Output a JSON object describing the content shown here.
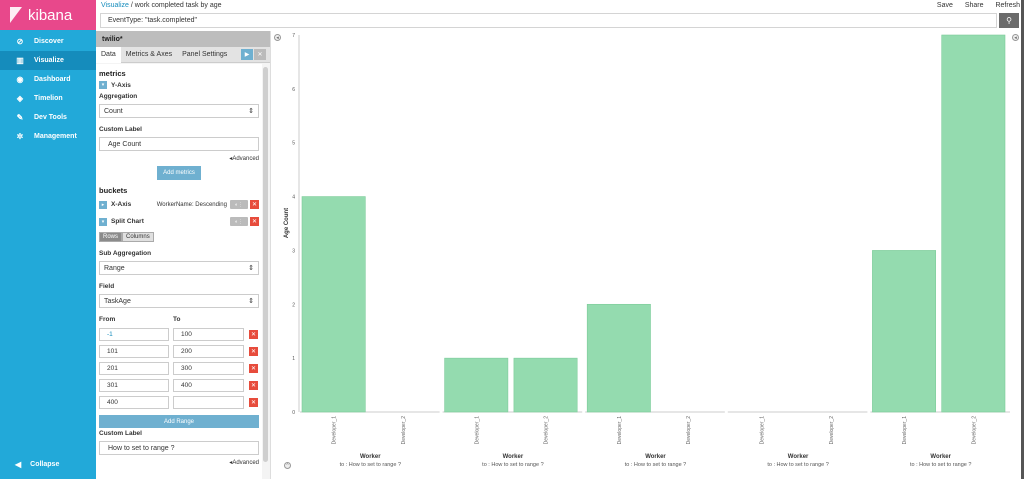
{
  "sidebar": {
    "logo": "kibana",
    "items": [
      {
        "label": "Discover",
        "icon": "compass-icon"
      },
      {
        "label": "Visualize",
        "icon": "bar-chart-icon",
        "active": true
      },
      {
        "label": "Dashboard",
        "icon": "dashboard-icon"
      },
      {
        "label": "Timelion",
        "icon": "timelion-icon"
      },
      {
        "label": "Dev Tools",
        "icon": "wrench-icon"
      },
      {
        "label": "Management",
        "icon": "gear-icon"
      }
    ],
    "collapse": "Collapse"
  },
  "topbar": {
    "breadcrumb_link": "Visualize",
    "breadcrumb_sep": "/",
    "breadcrumb_title": "work completed task by age",
    "actions": {
      "save": "Save",
      "share": "Share",
      "refresh": "Refresh"
    }
  },
  "search": {
    "query": "EventType: \"task.completed\""
  },
  "editor": {
    "index_title": "twilio*",
    "tabs": [
      "Data",
      "Metrics & Axes",
      "Panel Settings"
    ],
    "metrics": {
      "heading": "metrics",
      "yaxis": "Y-Axis",
      "aggregation_label": "Aggregation",
      "aggregation_value": "Count",
      "custom_label": "Custom Label",
      "custom_value": "Age Count",
      "advanced": "Advanced",
      "add_metrics": "Add metrics"
    },
    "buckets": {
      "heading": "buckets",
      "xaxis": "X-Axis",
      "xaxis_desc": "WorkerName: Descending",
      "split_chart": "Split Chart",
      "rows": "Rows",
      "columns": "Columns",
      "sub_aggregation_label": "Sub Aggregation",
      "sub_aggregation_value": "Range",
      "field_label": "Field",
      "field_value": "TaskAge",
      "from_label": "From",
      "to_label": "To",
      "ranges": [
        {
          "from": "-1",
          "to": "100"
        },
        {
          "from": "101",
          "to": "200"
        },
        {
          "from": "201",
          "to": "300"
        },
        {
          "from": "301",
          "to": "400"
        },
        {
          "from": "400",
          "to": ""
        }
      ],
      "add_range": "Add Range",
      "custom_label": "Custom Label",
      "custom_value": "How to set to range ?",
      "advanced": "Advanced"
    }
  },
  "chart_data": {
    "type": "bar",
    "ylabel": "Age Count",
    "ylim": [
      0,
      7
    ],
    "yticks": [
      0,
      1,
      2,
      3,
      4,
      5,
      6,
      7
    ],
    "panels": [
      {
        "xlabel": "Worker",
        "sublabel": "to : How to set to range ?",
        "categories": [
          "Developer_1",
          "Developer_2"
        ],
        "values": [
          4,
          0
        ]
      },
      {
        "xlabel": "Worker",
        "sublabel": "to : How to set to range ?",
        "categories": [
          "Developer_1",
          "Developer_2"
        ],
        "values": [
          1,
          1
        ]
      },
      {
        "xlabel": "Worker",
        "sublabel": "to : How to set to range ?",
        "categories": [
          "Developer_1",
          "Developer_2"
        ],
        "values": [
          2,
          0
        ]
      },
      {
        "xlabel": "Worker",
        "sublabel": "to : How to set to range ?",
        "categories": [
          "Developer_1",
          "Developer_2"
        ],
        "values": [
          0,
          0
        ]
      },
      {
        "xlabel": "Worker",
        "sublabel": "to : How to set to range ?",
        "categories": [
          "Developer_1",
          "Developer_2"
        ],
        "values": [
          3,
          7
        ]
      }
    ],
    "bar_color": "#94dbaf",
    "bar_stroke": "#7ccb9a"
  }
}
